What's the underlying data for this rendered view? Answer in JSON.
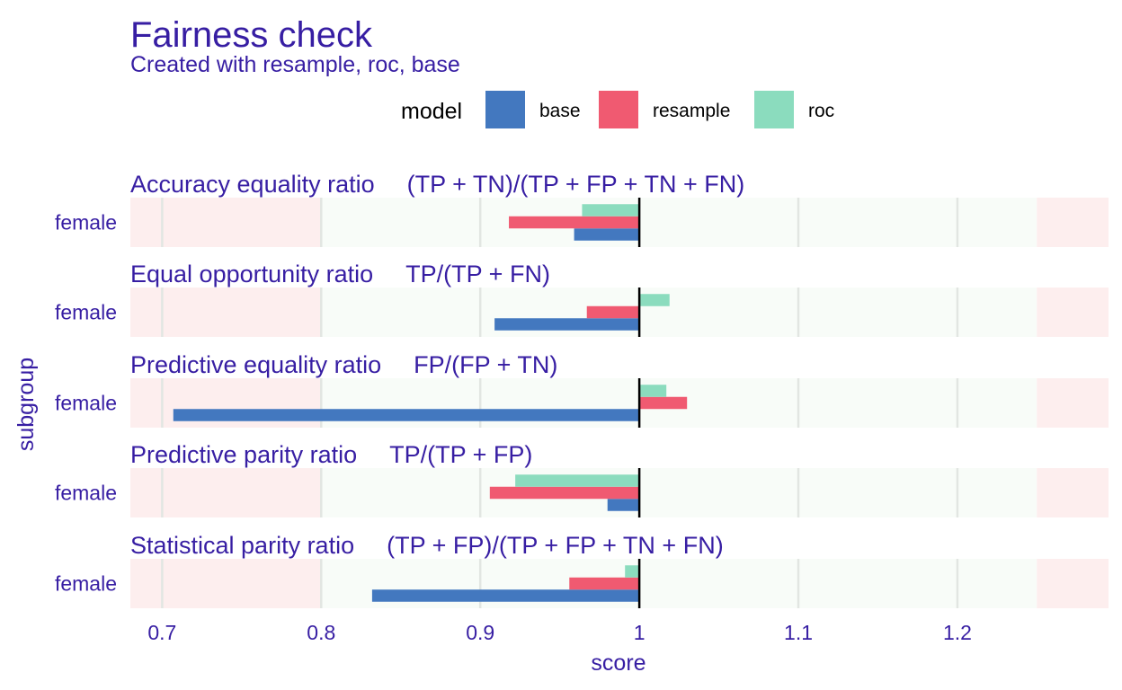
{
  "title": "Fairness check",
  "subtitle": "Created with resample, roc, base",
  "colors": {
    "text": "#371ea3",
    "legend_title": "#000000",
    "base": "#4378bf",
    "resample": "#f05a71",
    "roc": "#8bdcbe",
    "fair_zone": "#f8fcf8",
    "unfair_zone": "#fdeeee",
    "gridline": "#e2e6e2",
    "baseline": "#000000"
  },
  "legend": {
    "title": "model",
    "items": [
      {
        "label": "base",
        "color_key": "base"
      },
      {
        "label": "resample",
        "color_key": "resample"
      },
      {
        "label": "roc",
        "color_key": "roc"
      }
    ]
  },
  "chart_data": {
    "type": "bar",
    "orientation": "horizontal",
    "baseline": 1,
    "xlim": [
      0.68,
      1.295
    ],
    "xticks": [
      0.7,
      0.8,
      0.9,
      1,
      1.1,
      1.2
    ],
    "xtick_labels": [
      "0.7",
      "0.8",
      "0.9",
      "1",
      "1.1",
      "1.2"
    ],
    "xlabel": "score",
    "ylabel": "subgroup",
    "fair_range": [
      0.8,
      1.25
    ],
    "series_order": [
      "base",
      "resample",
      "roc"
    ],
    "facets": [
      {
        "name": "Accuracy equality ratio",
        "formula": "(TP + TN)/(TP + FP + TN + FN)",
        "category": "female",
        "values": {
          "base": 0.959,
          "resample": 0.918,
          "roc": 0.964
        }
      },
      {
        "name": "Equal opportunity ratio",
        "formula": "TP/(TP + FN)",
        "category": "female",
        "values": {
          "base": 0.909,
          "resample": 0.967,
          "roc": 1.019
        }
      },
      {
        "name": "Predictive equality ratio",
        "formula": "FP/(FP + TN)",
        "category": "female",
        "values": {
          "base": 0.707,
          "resample": 1.03,
          "roc": 1.017
        }
      },
      {
        "name": "Predictive parity ratio",
        "formula": "TP/(TP + FP)",
        "category": "female",
        "values": {
          "base": 0.98,
          "resample": 0.906,
          "roc": 0.922
        }
      },
      {
        "name": "Statistical parity ratio",
        "formula": "(TP + FP)/(TP + FP + TN + FN)",
        "category": "female",
        "values": {
          "base": 0.832,
          "resample": 0.956,
          "roc": 0.991
        }
      }
    ]
  }
}
